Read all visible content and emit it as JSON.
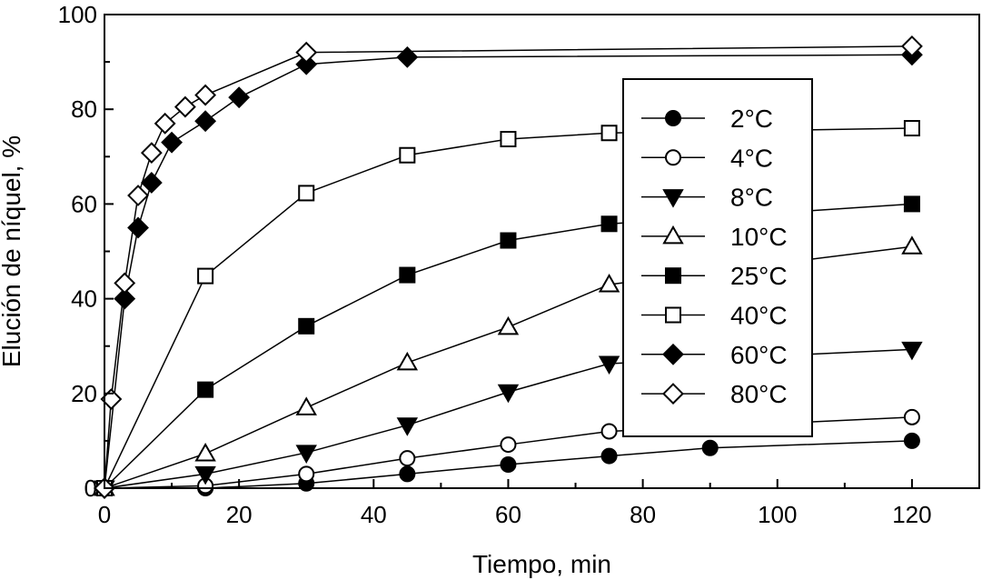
{
  "chart_data": {
    "type": "line",
    "xlabel": "Tiempo, min",
    "ylabel": "Elución de níquel, %",
    "xlim": [
      0,
      130
    ],
    "ylim": [
      0,
      100
    ],
    "xticks": [
      0,
      20,
      40,
      60,
      80,
      100,
      120
    ],
    "yticks": [
      0,
      20,
      40,
      60,
      80,
      100
    ],
    "x_tick_labels": [
      "0",
      "20",
      "40",
      "60",
      "80",
      "100",
      "120"
    ],
    "y_tick_labels": [
      "0",
      "20",
      "40",
      "60",
      "80",
      "100"
    ],
    "legend_position": "right",
    "series": [
      {
        "name": "2°C",
        "marker": "circle",
        "filled": true,
        "points": [
          [
            0,
            0
          ],
          [
            15,
            0
          ],
          [
            30,
            1
          ],
          [
            45,
            3
          ],
          [
            60,
            5
          ],
          [
            75,
            6.8
          ],
          [
            90,
            8.5
          ],
          [
            120,
            10
          ]
        ]
      },
      {
        "name": "4°C",
        "marker": "circle",
        "filled": false,
        "points": [
          [
            0,
            0
          ],
          [
            15,
            0.5
          ],
          [
            30,
            3
          ],
          [
            45,
            6.3
          ],
          [
            60,
            9.2
          ],
          [
            75,
            12
          ],
          [
            120,
            15
          ]
        ]
      },
      {
        "name": "8°C",
        "marker": "triangle-down",
        "filled": true,
        "points": [
          [
            0,
            0
          ],
          [
            15,
            3
          ],
          [
            30,
            7.5
          ],
          [
            45,
            13.3
          ],
          [
            60,
            20.3
          ],
          [
            75,
            26.3
          ],
          [
            120,
            29.3
          ]
        ]
      },
      {
        "name": "10°C",
        "marker": "triangle-up",
        "filled": false,
        "points": [
          [
            0,
            0
          ],
          [
            15,
            7.3
          ],
          [
            30,
            17
          ],
          [
            45,
            26.5
          ],
          [
            60,
            34
          ],
          [
            75,
            43
          ],
          [
            120,
            51
          ]
        ]
      },
      {
        "name": "25°C",
        "marker": "square",
        "filled": true,
        "points": [
          [
            0,
            0
          ],
          [
            15,
            20.8
          ],
          [
            30,
            34.2
          ],
          [
            45,
            45
          ],
          [
            60,
            52.3
          ],
          [
            75,
            55.8
          ],
          [
            120,
            60
          ]
        ]
      },
      {
        "name": "40°C",
        "marker": "square",
        "filled": false,
        "points": [
          [
            0,
            0
          ],
          [
            15,
            44.8
          ],
          [
            30,
            62.3
          ],
          [
            45,
            70.3
          ],
          [
            60,
            73.7
          ],
          [
            75,
            75
          ],
          [
            120,
            76
          ]
        ]
      },
      {
        "name": "60°C",
        "marker": "diamond",
        "filled": true,
        "points": [
          [
            0,
            0
          ],
          [
            3,
            40
          ],
          [
            5,
            55
          ],
          [
            7,
            64.5
          ],
          [
            10,
            73
          ],
          [
            15,
            77.5
          ],
          [
            20,
            82.5
          ],
          [
            30,
            89.5
          ],
          [
            45,
            91
          ],
          [
            120,
            91.5
          ]
        ]
      },
      {
        "name": "80°C",
        "marker": "diamond",
        "filled": false,
        "points": [
          [
            0,
            0
          ],
          [
            1,
            18.8
          ],
          [
            3,
            43.3
          ],
          [
            5,
            61.8
          ],
          [
            7,
            70.8
          ],
          [
            9,
            77
          ],
          [
            12,
            80.5
          ],
          [
            15,
            83
          ],
          [
            30,
            92
          ],
          [
            120,
            93.3
          ]
        ]
      }
    ]
  }
}
